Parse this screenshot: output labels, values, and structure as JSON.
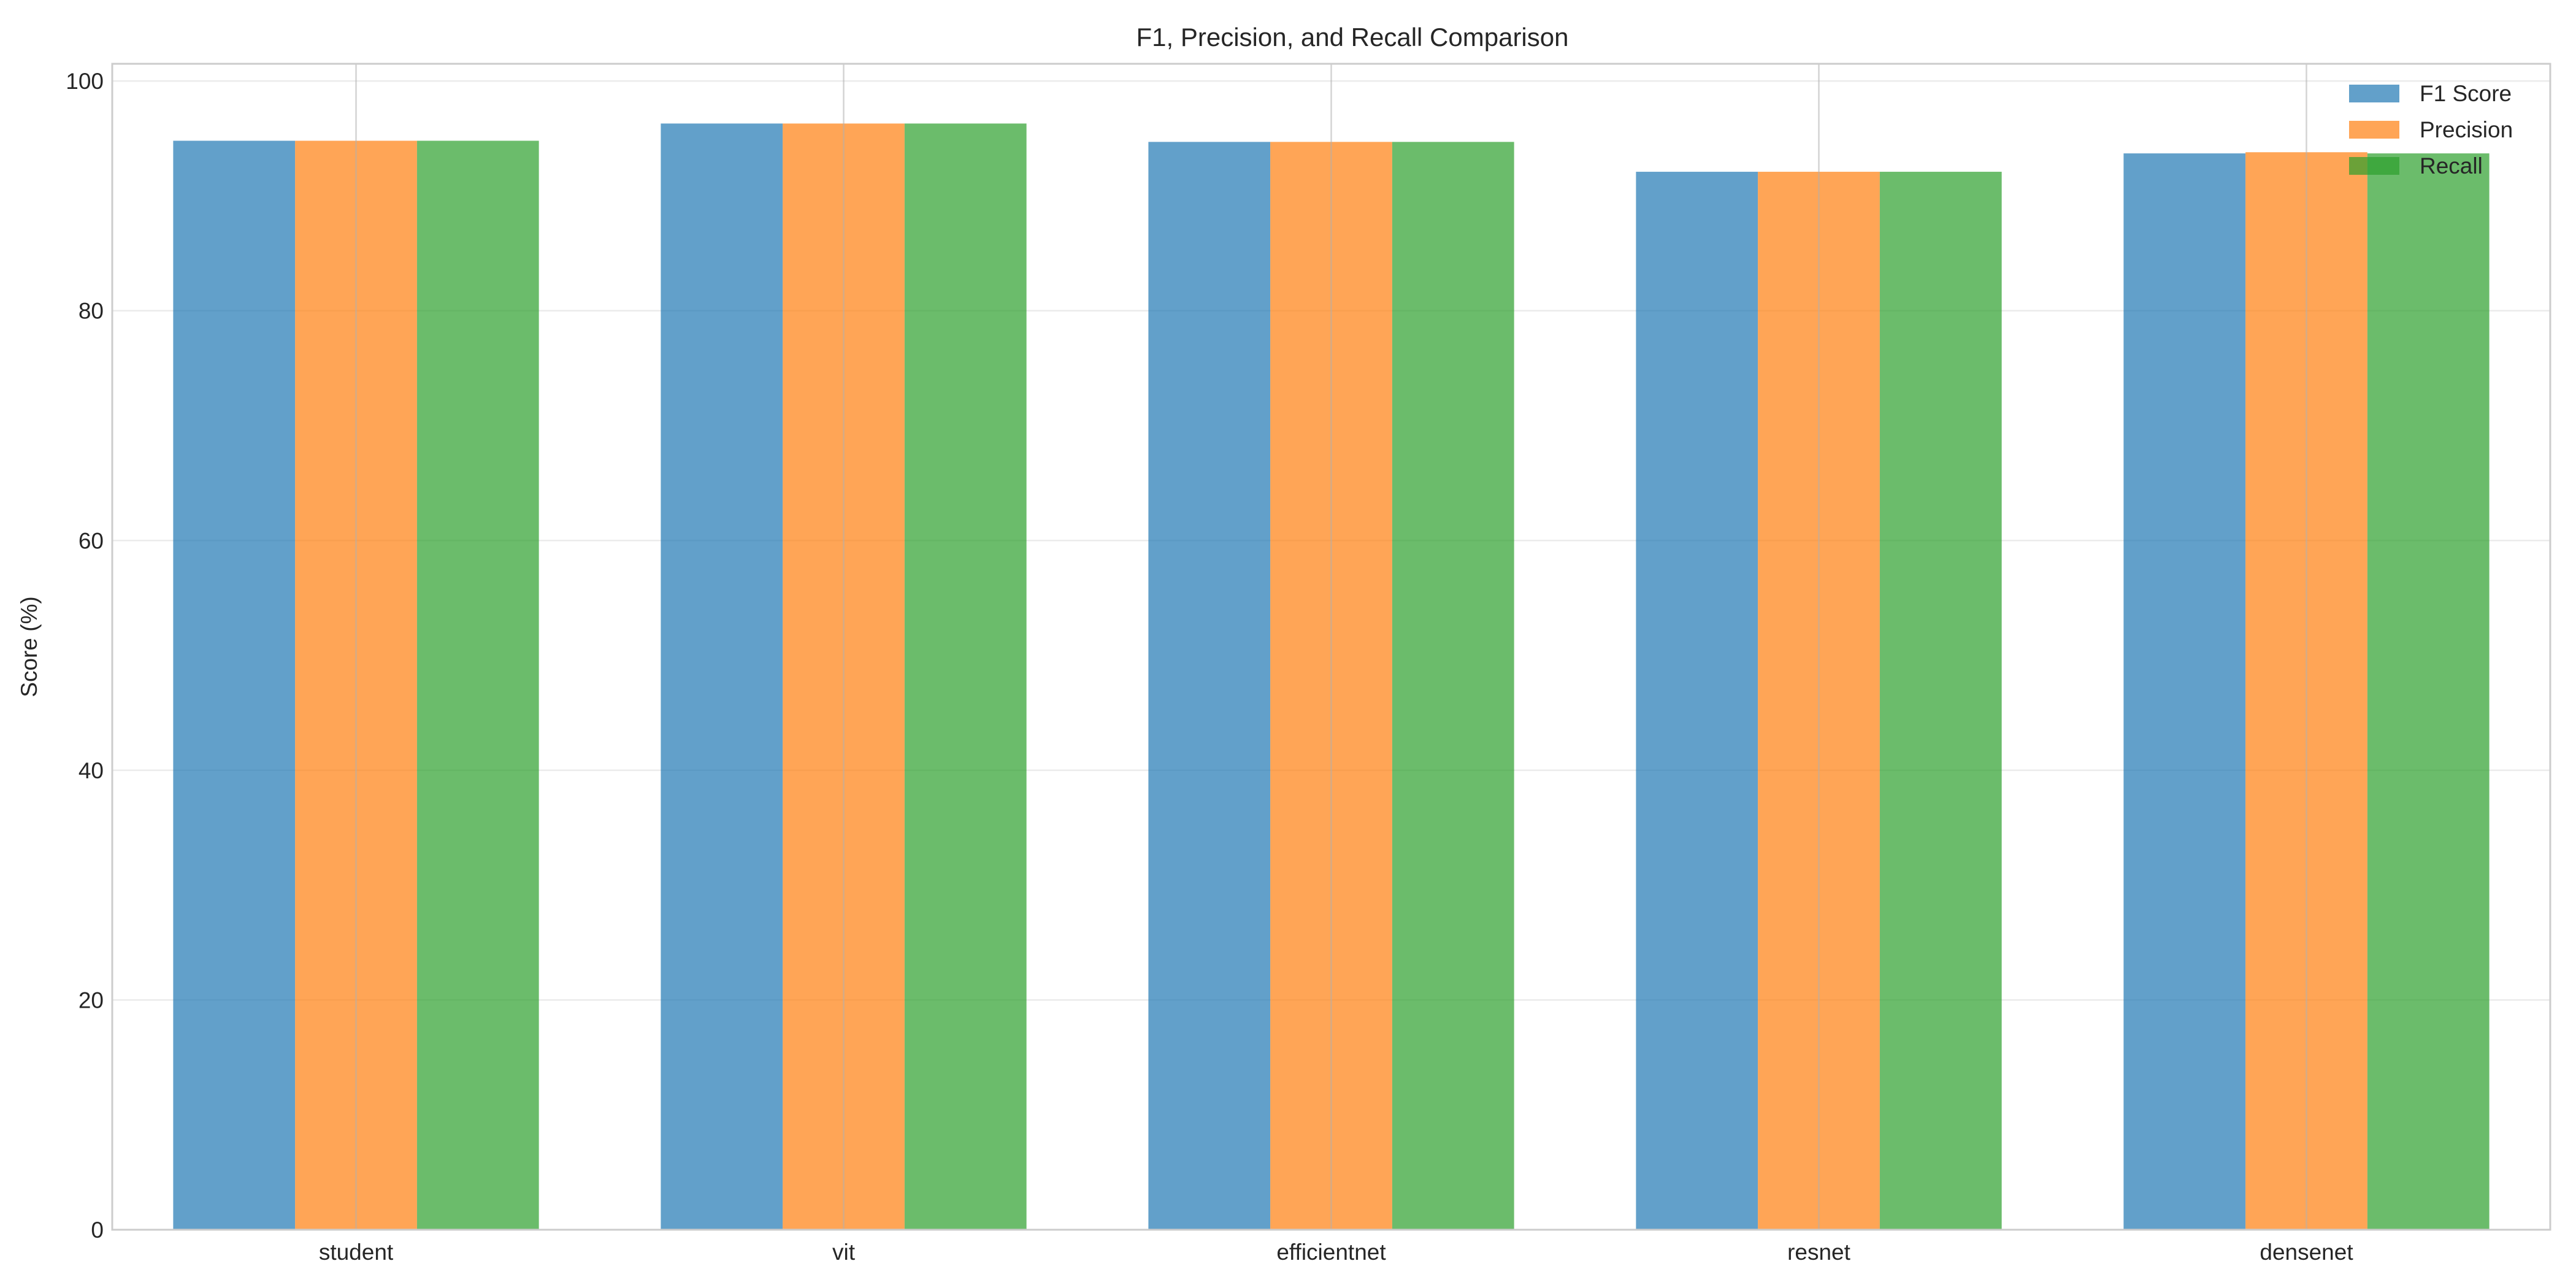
{
  "chart_data": {
    "type": "bar",
    "title": "F1, Precision, and Recall Comparison",
    "xlabel": "",
    "ylabel": "Score (%)",
    "ylim": [
      0,
      100
    ],
    "yticks": [
      0,
      20,
      40,
      60,
      80,
      100
    ],
    "categories": [
      "student",
      "vit",
      "efficientnet",
      "resnet",
      "densenet"
    ],
    "series": [
      {
        "name": "F1 Score",
        "color": "#1f77b4",
        "values": [
          94.8,
          96.3,
          94.7,
          92.1,
          93.7
        ]
      },
      {
        "name": "Precision",
        "color": "#ff7f0e",
        "values": [
          94.8,
          96.3,
          94.7,
          92.1,
          93.8
        ]
      },
      {
        "name": "Recall",
        "color": "#2ca02c",
        "values": [
          94.8,
          96.3,
          94.7,
          92.1,
          93.7
        ]
      }
    ],
    "grid": true,
    "legend_position": "top-right"
  }
}
